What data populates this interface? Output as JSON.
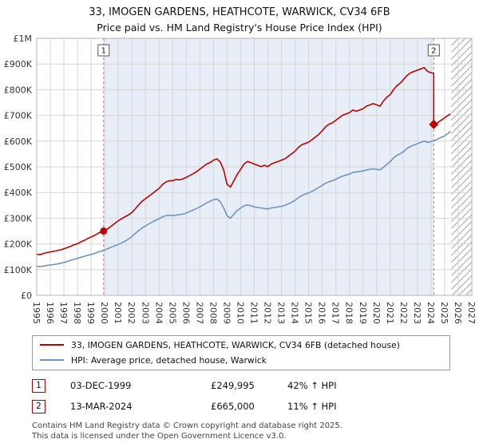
{
  "header": {
    "title": "33, IMOGEN GARDENS, HEATHCOTE, WARWICK, CV34 6FB",
    "subtitle": "Price paid vs. HM Land Registry's House Price Index (HPI)"
  },
  "chart_data": {
    "type": "line",
    "x_axis": {
      "min": 1995,
      "max": 2027,
      "tick_years": [
        1995,
        1996,
        1997,
        1998,
        1999,
        2000,
        2001,
        2002,
        2003,
        2004,
        2005,
        2006,
        2007,
        2008,
        2009,
        2010,
        2011,
        2012,
        2013,
        2014,
        2015,
        2016,
        2017,
        2018,
        2019,
        2020,
        2021,
        2022,
        2023,
        2024,
        2025,
        2026,
        2027
      ]
    },
    "y_axis": {
      "min": 0,
      "max": 1000000,
      "tick_step": 100000,
      "tick_labels": [
        "£0",
        "£100K",
        "£200K",
        "£300K",
        "£400K",
        "£500K",
        "£600K",
        "£700K",
        "£800K",
        "£900K",
        "£1M"
      ]
    },
    "regions": {
      "shaded": [
        1999.92,
        2024.2
      ],
      "hatched": [
        2025.5,
        2027
      ]
    },
    "sale_markers": [
      {
        "label": "1",
        "x": 1999.92,
        "price": 249995,
        "shape": "circle"
      },
      {
        "label": "2",
        "x": 2024.2,
        "price": 665000,
        "shape": "diamond"
      }
    ],
    "colors": {
      "grid": "#d6d6d6",
      "shade": "#e8eef7",
      "sale_line": "#e06666",
      "border": "#b5b5b5",
      "hatch": "#aaaaaa",
      "axis_text": "#333333",
      "sale_box_border": "#555555"
    },
    "series": [
      {
        "name": "33, IMOGEN GARDENS, HEATHCOTE, WARWICK, CV34 6FB (detached house)",
        "color": "#c00000",
        "unit": "GBP thousands",
        "points": [
          [
            1995,
            160
          ],
          [
            1995.25,
            158
          ],
          [
            1995.5,
            163
          ],
          [
            1995.75,
            166
          ],
          [
            1996,
            169
          ],
          [
            1996.25,
            171
          ],
          [
            1996.5,
            174
          ],
          [
            1996.75,
            177
          ],
          [
            1997,
            181
          ],
          [
            1997.25,
            186
          ],
          [
            1997.5,
            191
          ],
          [
            1997.75,
            197
          ],
          [
            1998,
            201
          ],
          [
            1998.25,
            208
          ],
          [
            1998.5,
            214
          ],
          [
            1998.75,
            221
          ],
          [
            1999,
            227
          ],
          [
            1999.25,
            233
          ],
          [
            1999.5,
            241
          ],
          [
            1999.75,
            247
          ],
          [
            1999.92,
            250
          ],
          [
            2000.25,
            260
          ],
          [
            2000.5,
            270
          ],
          [
            2000.75,
            280
          ],
          [
            2001,
            290
          ],
          [
            2001.25,
            298
          ],
          [
            2001.5,
            306
          ],
          [
            2001.75,
            313
          ],
          [
            2002,
            322
          ],
          [
            2002.25,
            337
          ],
          [
            2002.5,
            352
          ],
          [
            2002.75,
            366
          ],
          [
            2003,
            376
          ],
          [
            2003.25,
            386
          ],
          [
            2003.5,
            396
          ],
          [
            2003.75,
            406
          ],
          [
            2004,
            416
          ],
          [
            2004.25,
            431
          ],
          [
            2004.5,
            441
          ],
          [
            2004.75,
            446
          ],
          [
            2005,
            446
          ],
          [
            2005.25,
            451
          ],
          [
            2005.5,
            449
          ],
          [
            2005.75,
            453
          ],
          [
            2006,
            459
          ],
          [
            2006.25,
            466
          ],
          [
            2006.5,
            473
          ],
          [
            2006.75,
            481
          ],
          [
            2007,
            491
          ],
          [
            2007.25,
            501
          ],
          [
            2007.5,
            511
          ],
          [
            2007.75,
            516
          ],
          [
            2008,
            526
          ],
          [
            2008.25,
            531
          ],
          [
            2008.5,
            519
          ],
          [
            2008.75,
            488
          ],
          [
            2009,
            432
          ],
          [
            2009.25,
            421
          ],
          [
            2009.5,
            446
          ],
          [
            2009.75,
            471
          ],
          [
            2010,
            491
          ],
          [
            2010.25,
            511
          ],
          [
            2010.5,
            521
          ],
          [
            2010.75,
            516
          ],
          [
            2011,
            511
          ],
          [
            2011.25,
            506
          ],
          [
            2011.5,
            501
          ],
          [
            2011.75,
            506
          ],
          [
            2012,
            501
          ],
          [
            2012.25,
            511
          ],
          [
            2012.5,
            516
          ],
          [
            2012.75,
            521
          ],
          [
            2013,
            526
          ],
          [
            2013.25,
            531
          ],
          [
            2013.5,
            541
          ],
          [
            2013.75,
            551
          ],
          [
            2014,
            561
          ],
          [
            2014.25,
            576
          ],
          [
            2014.5,
            586
          ],
          [
            2014.75,
            591
          ],
          [
            2015,
            596
          ],
          [
            2015.25,
            606
          ],
          [
            2015.5,
            616
          ],
          [
            2015.75,
            626
          ],
          [
            2016,
            641
          ],
          [
            2016.25,
            656
          ],
          [
            2016.5,
            666
          ],
          [
            2016.75,
            671
          ],
          [
            2017,
            681
          ],
          [
            2017.25,
            691
          ],
          [
            2017.5,
            701
          ],
          [
            2017.75,
            706
          ],
          [
            2018,
            711
          ],
          [
            2018.25,
            721
          ],
          [
            2018.5,
            716
          ],
          [
            2018.75,
            721
          ],
          [
            2019,
            726
          ],
          [
            2019.25,
            736
          ],
          [
            2019.5,
            741
          ],
          [
            2019.75,
            746
          ],
          [
            2020,
            741
          ],
          [
            2020.25,
            736
          ],
          [
            2020.5,
            756
          ],
          [
            2020.75,
            771
          ],
          [
            2021,
            781
          ],
          [
            2021.25,
            801
          ],
          [
            2021.5,
            816
          ],
          [
            2021.75,
            826
          ],
          [
            2022,
            841
          ],
          [
            2022.25,
            856
          ],
          [
            2022.5,
            866
          ],
          [
            2022.75,
            871
          ],
          [
            2023,
            876
          ],
          [
            2023.25,
            881
          ],
          [
            2023.5,
            886
          ],
          [
            2023.75,
            871
          ],
          [
            2024,
            866
          ],
          [
            2024.2,
            864
          ],
          [
            2024.2,
            665
          ],
          [
            2024.4,
            668
          ],
          [
            2024.6,
            676
          ],
          [
            2024.8,
            683
          ],
          [
            2025,
            691
          ],
          [
            2025.2,
            698
          ],
          [
            2025.4,
            705
          ]
        ]
      },
      {
        "name": "HPI: Average price, detached house, Warwick",
        "color": "#6f94c4",
        "unit": "GBP thousands",
        "points": [
          [
            1995,
            113
          ],
          [
            1995.25,
            112
          ],
          [
            1995.5,
            114
          ],
          [
            1995.75,
            116
          ],
          [
            1996,
            118
          ],
          [
            1996.25,
            120
          ],
          [
            1996.5,
            122
          ],
          [
            1996.75,
            125
          ],
          [
            1997,
            128
          ],
          [
            1997.25,
            132
          ],
          [
            1997.5,
            136
          ],
          [
            1997.75,
            140
          ],
          [
            1998,
            144
          ],
          [
            1998.25,
            148
          ],
          [
            1998.5,
            152
          ],
          [
            1998.75,
            156
          ],
          [
            1999,
            159
          ],
          [
            1999.25,
            163
          ],
          [
            1999.5,
            168
          ],
          [
            1999.75,
            172
          ],
          [
            2000,
            176
          ],
          [
            2000.25,
            182
          ],
          [
            2000.5,
            188
          ],
          [
            2000.75,
            193
          ],
          [
            2001,
            198
          ],
          [
            2001.25,
            204
          ],
          [
            2001.5,
            211
          ],
          [
            2001.75,
            219
          ],
          [
            2002,
            229
          ],
          [
            2002.25,
            241
          ],
          [
            2002.5,
            252
          ],
          [
            2002.75,
            262
          ],
          [
            2003,
            270
          ],
          [
            2003.25,
            278
          ],
          [
            2003.5,
            285
          ],
          [
            2003.75,
            292
          ],
          [
            2004,
            298
          ],
          [
            2004.25,
            305
          ],
          [
            2004.5,
            310
          ],
          [
            2004.75,
            312
          ],
          [
            2005,
            310
          ],
          [
            2005.25,
            312
          ],
          [
            2005.5,
            314
          ],
          [
            2005.75,
            316
          ],
          [
            2006,
            320
          ],
          [
            2006.25,
            326
          ],
          [
            2006.5,
            332
          ],
          [
            2006.75,
            338
          ],
          [
            2007,
            344
          ],
          [
            2007.25,
            352
          ],
          [
            2007.5,
            360
          ],
          [
            2007.75,
            366
          ],
          [
            2008,
            372
          ],
          [
            2008.25,
            375
          ],
          [
            2008.5,
            364
          ],
          [
            2008.75,
            340
          ],
          [
            2009,
            310
          ],
          [
            2009.25,
            300
          ],
          [
            2009.5,
            316
          ],
          [
            2009.75,
            330
          ],
          [
            2010,
            340
          ],
          [
            2010.25,
            348
          ],
          [
            2010.5,
            352
          ],
          [
            2010.75,
            348
          ],
          [
            2011,
            344
          ],
          [
            2011.25,
            342
          ],
          [
            2011.5,
            340
          ],
          [
            2011.75,
            338
          ],
          [
            2012,
            336
          ],
          [
            2012.25,
            340
          ],
          [
            2012.5,
            342
          ],
          [
            2012.75,
            344
          ],
          [
            2013,
            346
          ],
          [
            2013.25,
            350
          ],
          [
            2013.5,
            356
          ],
          [
            2013.75,
            362
          ],
          [
            2014,
            370
          ],
          [
            2014.25,
            380
          ],
          [
            2014.5,
            388
          ],
          [
            2014.75,
            394
          ],
          [
            2015,
            398
          ],
          [
            2015.25,
            405
          ],
          [
            2015.5,
            412
          ],
          [
            2015.75,
            420
          ],
          [
            2016,
            428
          ],
          [
            2016.25,
            436
          ],
          [
            2016.5,
            442
          ],
          [
            2016.75,
            446
          ],
          [
            2017,
            452
          ],
          [
            2017.25,
            458
          ],
          [
            2017.5,
            464
          ],
          [
            2017.75,
            468
          ],
          [
            2018,
            472
          ],
          [
            2018.25,
            478
          ],
          [
            2018.5,
            480
          ],
          [
            2018.75,
            482
          ],
          [
            2019,
            484
          ],
          [
            2019.25,
            488
          ],
          [
            2019.5,
            490
          ],
          [
            2019.75,
            492
          ],
          [
            2020,
            490
          ],
          [
            2020.25,
            488
          ],
          [
            2020.5,
            498
          ],
          [
            2020.75,
            510
          ],
          [
            2021,
            520
          ],
          [
            2021.25,
            535
          ],
          [
            2021.5,
            545
          ],
          [
            2021.75,
            552
          ],
          [
            2022,
            560
          ],
          [
            2022.25,
            572
          ],
          [
            2022.5,
            580
          ],
          [
            2022.75,
            585
          ],
          [
            2023,
            590
          ],
          [
            2023.25,
            595
          ],
          [
            2023.5,
            600
          ],
          [
            2023.75,
            595
          ],
          [
            2024,
            598
          ],
          [
            2024.25,
            602
          ],
          [
            2024.5,
            608
          ],
          [
            2024.75,
            615
          ],
          [
            2025,
            620
          ],
          [
            2025.2,
            628
          ],
          [
            2025.4,
            636
          ]
        ]
      }
    ]
  },
  "legend": {
    "items": [
      {
        "label": "33, IMOGEN GARDENS, HEATHCOTE, WARWICK, CV34 6FB (detached house)",
        "color": "#c00000"
      },
      {
        "label": "HPI: Average price, detached house, Warwick",
        "color": "#6f94c4"
      }
    ]
  },
  "transactions": [
    {
      "num": "1",
      "date": "03-DEC-1999",
      "price": "£249,995",
      "vs_hpi": "42% ↑ HPI"
    },
    {
      "num": "2",
      "date": "13-MAR-2024",
      "price": "£665,000",
      "vs_hpi": "11% ↑ HPI"
    }
  ],
  "footer": {
    "line1": "Contains HM Land Registry data © Crown copyright and database right 2025.",
    "line2": "This data is licensed under the Open Government Licence v3.0."
  }
}
